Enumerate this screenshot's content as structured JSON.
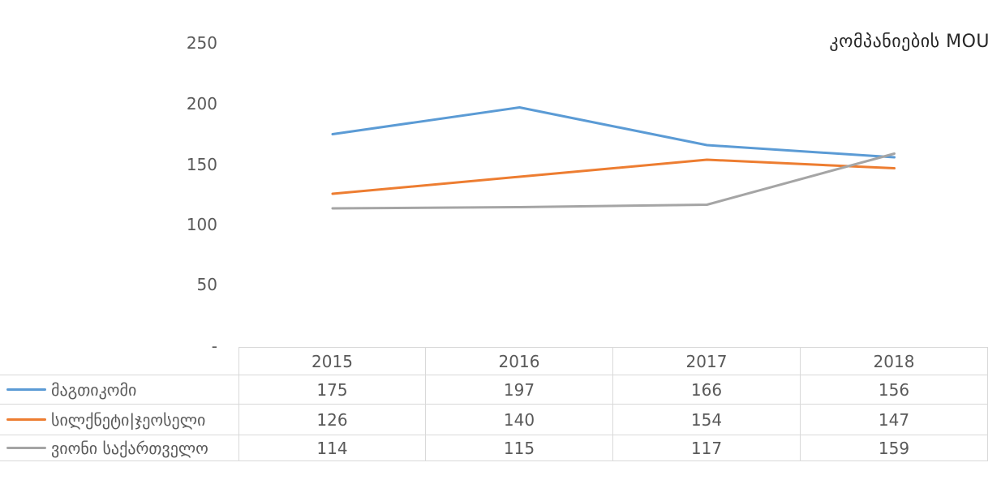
{
  "title": "კომპანიების MOU",
  "y_axis": {
    "ticks": [
      "250",
      "200",
      "150",
      "100",
      "50",
      "-"
    ]
  },
  "chart_data": {
    "type": "line",
    "title": "კომპანიების MOU",
    "categories": [
      "2015",
      "2016",
      "2017",
      "2018"
    ],
    "series": [
      {
        "name": "მაგთიკომი",
        "color": "#5B9BD5",
        "values": [
          175,
          197,
          166,
          156
        ]
      },
      {
        "name": "სილქნეტი|ჯეოსელი",
        "color": "#ED7D31",
        "values": [
          126,
          140,
          154,
          147
        ]
      },
      {
        "name": "ვიონი საქართველო",
        "color": "#A5A5A5",
        "values": [
          114,
          115,
          117,
          159
        ]
      }
    ],
    "ylim": [
      0,
      250
    ],
    "y_tick_values": [
      250,
      200,
      150,
      100,
      50,
      0
    ],
    "grid": false,
    "legend_position": "left-of-table-rows",
    "text_color": "#595959",
    "border_color": "#D9D9D9",
    "title_color": "#262626"
  }
}
